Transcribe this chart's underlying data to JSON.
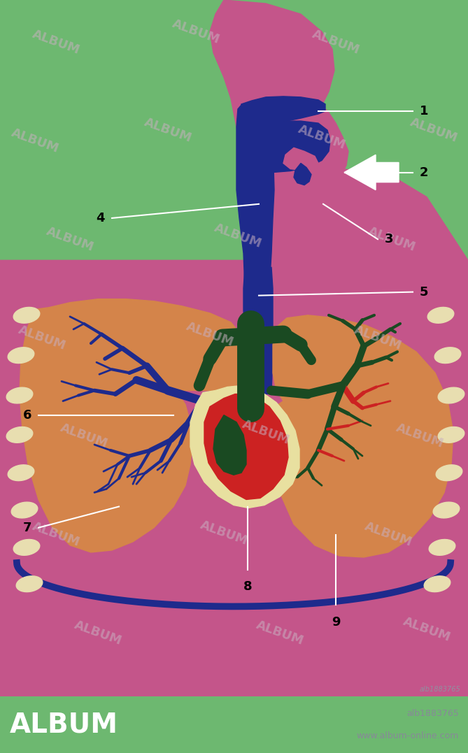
{
  "bg_color": "#6db870",
  "body_color": "#c4558a",
  "airway_color": "#1e2a8c",
  "lung_color": "#d4844a",
  "heart_outer_color": "#e8e0a0",
  "heart_red_color": "#cc2222",
  "heart_dark_color": "#1a4a22",
  "tree_right_color": "#1e2a8c",
  "tree_left_dark_color": "#1a4a22",
  "tree_left_red_color": "#cc2222",
  "diaphragm_color": "#1e2a8c",
  "line_color": "#ffffff",
  "oval_color": "#e8deb0",
  "watermark_color": "#c8b0c0",
  "footer_bg": "#111111",
  "footer_text1": "alb1883765",
  "footer_text2": "www.album-online.com",
  "footer_color": "#ffffff",
  "album_text": "ALBUM",
  "id_color": "#9090a0"
}
